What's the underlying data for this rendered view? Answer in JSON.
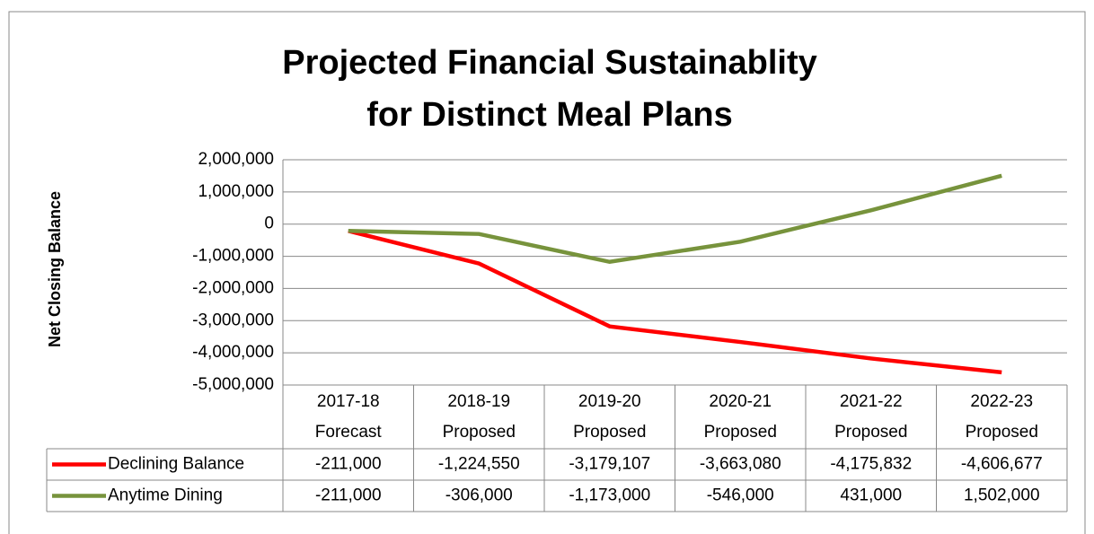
{
  "chart_data": {
    "type": "line",
    "title": [
      "Projected Financial Sustainablity",
      "for Distinct Meal Plans"
    ],
    "y_label": "Net Closing Balance",
    "categories": [
      "2017-18 Forecast",
      "2018-19 Proposed",
      "2019-20 Proposed",
      "2020-21 Proposed",
      "2021-22 Proposed",
      "2022-23 Proposed"
    ],
    "series": [
      {
        "name": "Declining Balance",
        "color": "#ff0000",
        "values": [
          -211000,
          -1224550,
          -3179107,
          -3663080,
          -4175832,
          -4606677
        ],
        "value_labels": [
          "-211,000",
          "-1,224,550",
          "-3,179,107",
          "-3,663,080",
          "-4,175,832",
          "-4,606,677"
        ]
      },
      {
        "name": "Anytime Dining",
        "color": "#77933c",
        "values": [
          -211000,
          -306000,
          -1173000,
          -546000,
          431000,
          1502000
        ],
        "value_labels": [
          "-211,000",
          "-306,000",
          "-1,173,000",
          "-546,000",
          "431,000",
          "1,502,000"
        ]
      }
    ],
    "ylim": [
      -5000000,
      2000000
    ],
    "yticks": [
      {
        "value": -5000000,
        "label": "-5,000,000"
      },
      {
        "value": -4000000,
        "label": "-4,000,000"
      },
      {
        "value": -3000000,
        "label": "-3,000,000"
      },
      {
        "value": -2000000,
        "label": "-2,000,000"
      },
      {
        "value": -1000000,
        "label": "-1,000,000"
      },
      0,
      {
        "value": 1000000,
        "label": "1,000,000"
      },
      {
        "value": 2000000,
        "label": "2,000,000"
      }
    ],
    "grid": true
  }
}
